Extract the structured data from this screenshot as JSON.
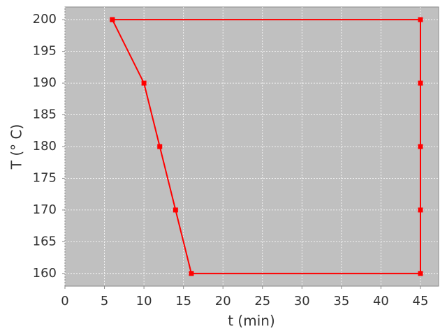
{
  "chart_data": {
    "type": "line",
    "x_label": "t (min)",
    "y_label": "T (° C)",
    "series": [
      {
        "color": "#ff0000",
        "x": [
          6,
          10,
          12,
          14,
          16,
          45,
          45,
          45,
          45,
          45,
          6
        ],
        "values": [
          200,
          190,
          180,
          170,
          160,
          160,
          170,
          180,
          190,
          200,
          200
        ]
      }
    ],
    "xlim": [
      0,
      47.3
    ],
    "xticks": [
      0,
      5,
      10,
      15,
      20,
      25,
      30,
      35,
      40,
      45
    ],
    "ylim": [
      158,
      202
    ],
    "yticks": [
      160,
      165,
      170,
      175,
      180,
      185,
      190,
      195,
      200
    ],
    "grid": true,
    "plot_background": "#c0c0c0"
  }
}
